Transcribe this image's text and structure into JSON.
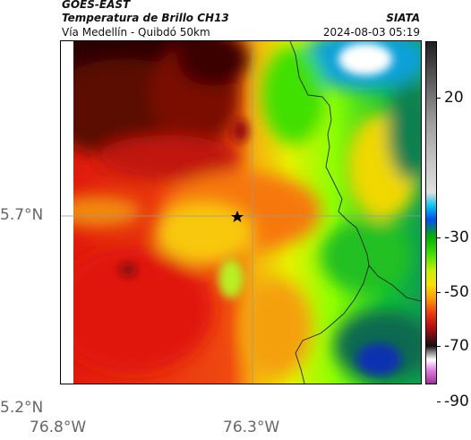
{
  "header": {
    "satellite": "GOES-EAST",
    "product": "Temperatura de Brillo CH13",
    "route": "Vía Medellín - Quibdó 50km",
    "agency": "SIATA",
    "datetime": "2024-08-03 05:19"
  },
  "map": {
    "lat_ticks": [
      "5.7°N",
      "5.2°N"
    ],
    "lon_ticks": [
      "76.8°W",
      "76.3°W"
    ],
    "marker_icon": "star-icon"
  },
  "colorbar": {
    "labels": [
      "20",
      "-30",
      "-50",
      "-70",
      "-90"
    ]
  }
}
